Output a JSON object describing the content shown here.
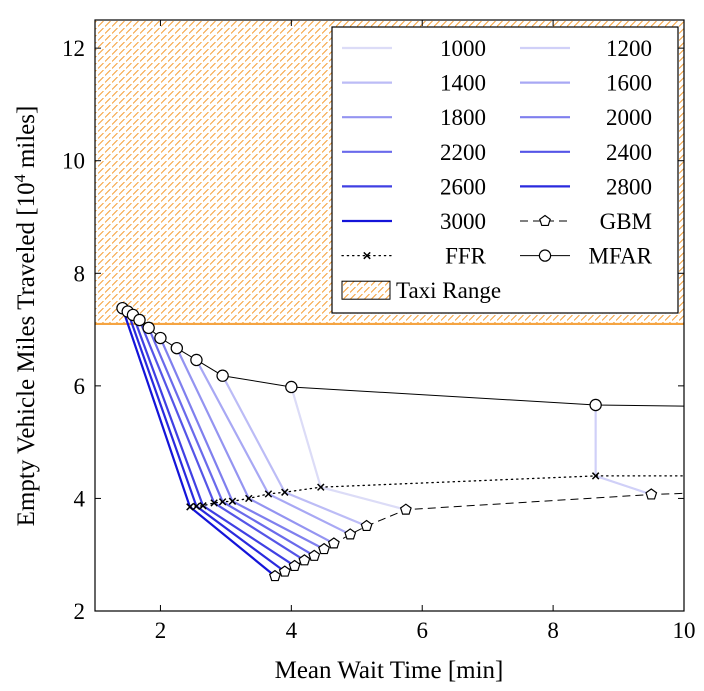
{
  "chart_data": {
    "type": "line",
    "xlabel": "Mean Wait Time [min]",
    "ylabel_main": "Empty Vehicle Miles Traveled [10",
    "ylabel_sup": "4",
    "ylabel_end": " miles]",
    "xlim": [
      1,
      10
    ],
    "ylim": [
      2,
      12.5
    ],
    "xticks": [
      2,
      4,
      6,
      8,
      10
    ],
    "yticks": [
      2,
      4,
      6,
      8,
      10,
      12
    ],
    "legend_placement": "top-right",
    "taxi_range": {
      "name": "Taxi Range",
      "y_min": 7.1,
      "y_max": 12.5,
      "color": "#f5a442"
    },
    "series": [
      {
        "name": "1000",
        "points": [
          [
            4.0,
            5.98
          ],
          [
            4.45,
            4.2
          ],
          [
            5.75,
            3.8
          ]
        ]
      },
      {
        "name": "1200",
        "points": [
          [
            8.65,
            5.66
          ],
          [
            8.65,
            4.4
          ],
          [
            9.5,
            4.07
          ]
        ]
      },
      {
        "name": "1400",
        "points": [
          [
            2.95,
            6.18
          ],
          [
            3.9,
            4.11
          ],
          [
            5.15,
            3.51
          ]
        ]
      },
      {
        "name": "1600",
        "points": [
          [
            2.55,
            6.46
          ],
          [
            3.65,
            4.08
          ],
          [
            4.9,
            3.36
          ]
        ]
      },
      {
        "name": "1800",
        "points": [
          [
            2.25,
            6.67
          ],
          [
            3.35,
            4.0
          ],
          [
            4.65,
            3.2
          ]
        ]
      },
      {
        "name": "2000",
        "points": [
          [
            2.0,
            6.85
          ],
          [
            3.1,
            3.95
          ],
          [
            4.5,
            3.1
          ]
        ]
      },
      {
        "name": "2200",
        "points": [
          [
            1.82,
            7.03
          ],
          [
            2.95,
            3.94
          ],
          [
            4.35,
            2.98
          ]
        ]
      },
      {
        "name": "2400",
        "points": [
          [
            1.68,
            7.17
          ],
          [
            2.82,
            3.92
          ],
          [
            4.2,
            2.9
          ]
        ]
      },
      {
        "name": "2600",
        "points": [
          [
            1.58,
            7.26
          ],
          [
            2.65,
            3.87
          ],
          [
            4.05,
            2.8
          ]
        ]
      },
      {
        "name": "2800",
        "points": [
          [
            1.5,
            7.32
          ],
          [
            2.55,
            3.86
          ],
          [
            3.9,
            2.7
          ]
        ]
      },
      {
        "name": "3000",
        "points": [
          [
            1.42,
            7.38
          ],
          [
            2.45,
            3.85
          ],
          [
            3.75,
            2.62
          ]
        ]
      },
      {
        "name": "GBM",
        "style": "dashed",
        "marker": "pentagon",
        "points": [
          [
            3.75,
            2.62
          ],
          [
            3.9,
            2.7
          ],
          [
            4.05,
            2.8
          ],
          [
            4.2,
            2.9
          ],
          [
            4.35,
            2.98
          ],
          [
            4.5,
            3.1
          ],
          [
            4.65,
            3.2
          ],
          [
            4.9,
            3.36
          ],
          [
            5.15,
            3.51
          ],
          [
            5.75,
            3.8
          ],
          [
            9.5,
            4.07
          ],
          [
            10.0,
            4.09
          ]
        ]
      },
      {
        "name": "FFR",
        "style": "dotted",
        "marker": "cross",
        "points": [
          [
            2.45,
            3.85
          ],
          [
            2.55,
            3.86
          ],
          [
            2.65,
            3.87
          ],
          [
            2.82,
            3.92
          ],
          [
            2.95,
            3.94
          ],
          [
            3.1,
            3.95
          ],
          [
            3.35,
            4.0
          ],
          [
            3.65,
            4.08
          ],
          [
            3.9,
            4.11
          ],
          [
            4.45,
            4.2
          ],
          [
            8.65,
            4.4
          ],
          [
            10.0,
            4.4
          ]
        ]
      },
      {
        "name": "MFAR",
        "style": "solid",
        "marker": "circle",
        "points": [
          [
            1.42,
            7.38
          ],
          [
            1.5,
            7.32
          ],
          [
            1.58,
            7.26
          ],
          [
            1.68,
            7.17
          ],
          [
            1.82,
            7.03
          ],
          [
            2.0,
            6.85
          ],
          [
            2.25,
            6.67
          ],
          [
            2.55,
            6.46
          ],
          [
            2.95,
            6.18
          ],
          [
            4.0,
            5.98
          ],
          [
            8.65,
            5.66
          ],
          [
            10.0,
            5.64
          ]
        ]
      }
    ],
    "blue_colors": [
      "#dcdcf7",
      "#d0d0f8",
      "#bcbcf6",
      "#a8a8f4",
      "#9494f1",
      "#7f7fee",
      "#6a6aeb",
      "#5555e7",
      "#4040e3",
      "#2a2ade",
      "#1414d9"
    ]
  }
}
